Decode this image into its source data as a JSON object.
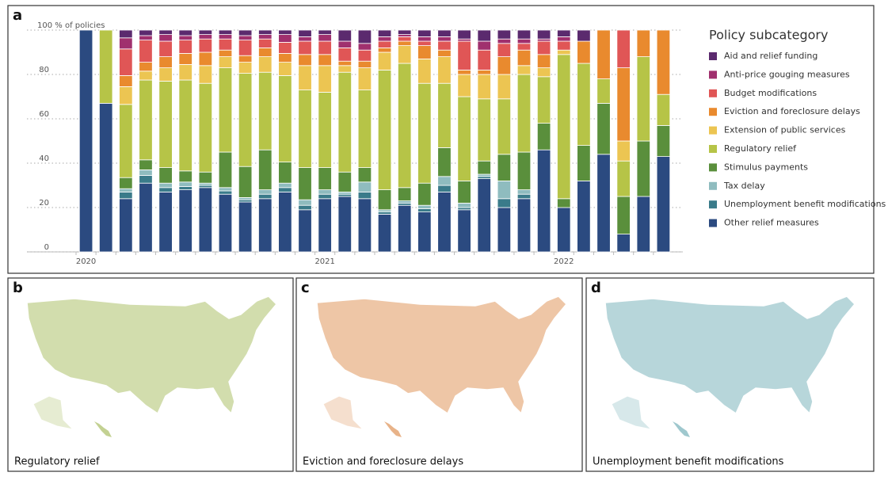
{
  "chart_data": {
    "type": "stacked_bar",
    "categories": [
      "2020",
      null,
      null,
      null,
      null,
      null,
      null,
      null,
      null,
      null,
      null,
      null,
      "2021",
      null,
      null,
      null,
      null,
      null,
      null,
      null,
      null,
      null,
      null,
      null,
      "2022",
      null,
      null,
      null,
      null,
      null
    ],
    "ylim": [
      0,
      100
    ],
    "yticks": [
      0,
      20,
      40,
      60,
      80,
      {
        "value": 100,
        "label": "100 % of policies"
      }
    ],
    "grid": true,
    "legend_title": "Policy subcategory",
    "series": [
      {
        "name": "Other relief measures",
        "color": "#2b4a80",
        "values": [
          100,
          67,
          24,
          31,
          27,
          28,
          29,
          26,
          22.5,
          24,
          27,
          19,
          24,
          25,
          24,
          17,
          21,
          18,
          27,
          19,
          33,
          20,
          24,
          46,
          20,
          32,
          44,
          8,
          25,
          43
        ]
      },
      {
        "name": "Unemployment benefit modifications",
        "color": "#3a7b8a",
        "values": [
          0,
          0,
          3,
          3.5,
          2,
          1.5,
          1,
          1.5,
          1,
          2,
          2,
          2,
          2,
          1,
          3,
          1,
          1,
          1.5,
          3,
          1,
          1,
          4,
          2,
          0,
          0,
          0,
          0,
          0,
          0,
          0
        ]
      },
      {
        "name": "Tax delay",
        "color": "#8fbcbf",
        "values": [
          0,
          0,
          1.5,
          2.5,
          2,
          2,
          1,
          1.5,
          1,
          2,
          2,
          2.5,
          2,
          1,
          4.5,
          1,
          1,
          1.5,
          4,
          2,
          1,
          8,
          2,
          0,
          0,
          0,
          0,
          0,
          0,
          0
        ]
      },
      {
        "name": "Stimulus payments",
        "color": "#5a8f3c",
        "values": [
          0,
          0,
          5,
          4.5,
          7,
          5,
          5,
          16,
          14,
          18,
          9.5,
          14.5,
          10,
          9,
          6.5,
          9,
          6,
          10,
          13,
          10,
          6,
          12,
          17,
          12,
          4,
          16,
          23,
          17,
          25,
          14
        ]
      },
      {
        "name": "Regulatory relief",
        "color": "#b6c447",
        "values": [
          0,
          33,
          33,
          36,
          39,
          41,
          40,
          38,
          42,
          35,
          39,
          35,
          34,
          45,
          35,
          54,
          56,
          45,
          29,
          38,
          28,
          25,
          35,
          21,
          65,
          37,
          11,
          16,
          38,
          14
        ]
      },
      {
        "name": "Extension of public services",
        "color": "#ecc552",
        "values": [
          0,
          0,
          8,
          4,
          6,
          7,
          8,
          5,
          5,
          7,
          6,
          11,
          12,
          3,
          10,
          8,
          8,
          11,
          12,
          10,
          11,
          11,
          4,
          4,
          2,
          0,
          0,
          9,
          0,
          0
        ]
      },
      {
        "name": "Eviction and foreclosure delays",
        "color": "#e98a2e",
        "values": [
          0,
          0,
          5,
          4,
          5,
          5,
          6,
          3,
          3,
          4,
          4,
          5,
          5,
          2,
          3,
          2,
          2,
          6,
          3,
          2,
          2,
          8,
          7,
          6,
          0,
          10,
          22,
          33,
          12,
          29
        ]
      },
      {
        "name": "Budget modifications",
        "color": "#e05656",
        "values": [
          0,
          0,
          12,
          10,
          7,
          6,
          6,
          5,
          7,
          4,
          5,
          6,
          6,
          6,
          5,
          3,
          2,
          2,
          4,
          13,
          9,
          6,
          3,
          6,
          4,
          0,
          0,
          17,
          0,
          0
        ]
      },
      {
        "name": "Anti-price gouging measures",
        "color": "#a0306e",
        "values": [
          0,
          0,
          5,
          2,
          3,
          2,
          2,
          2,
          2,
          2,
          3.5,
          2,
          3,
          3,
          3,
          2,
          1,
          2,
          2,
          1,
          4,
          2,
          2,
          1,
          2,
          0,
          0,
          0,
          0,
          0
        ]
      },
      {
        "name": "Aid and relief funding",
        "color": "#5b2a6e",
        "values": [
          0,
          0,
          3.5,
          2.5,
          2,
          2.5,
          2,
          2,
          2.5,
          2,
          2,
          3,
          2,
          5,
          6,
          3,
          2,
          3,
          3,
          4,
          5,
          4,
          4,
          4,
          3,
          5,
          0,
          0,
          0,
          0
        ]
      }
    ]
  },
  "panel_labels": [
    "a",
    "b",
    "c",
    "d"
  ],
  "maps": [
    {
      "caption": "Regulatory relief",
      "color": "#9bb34a"
    },
    {
      "caption": "Eviction and foreclosure delays",
      "color": "#d9803a"
    },
    {
      "caption": "Unemployment benefit modifications",
      "color": "#5fa3ad"
    }
  ]
}
